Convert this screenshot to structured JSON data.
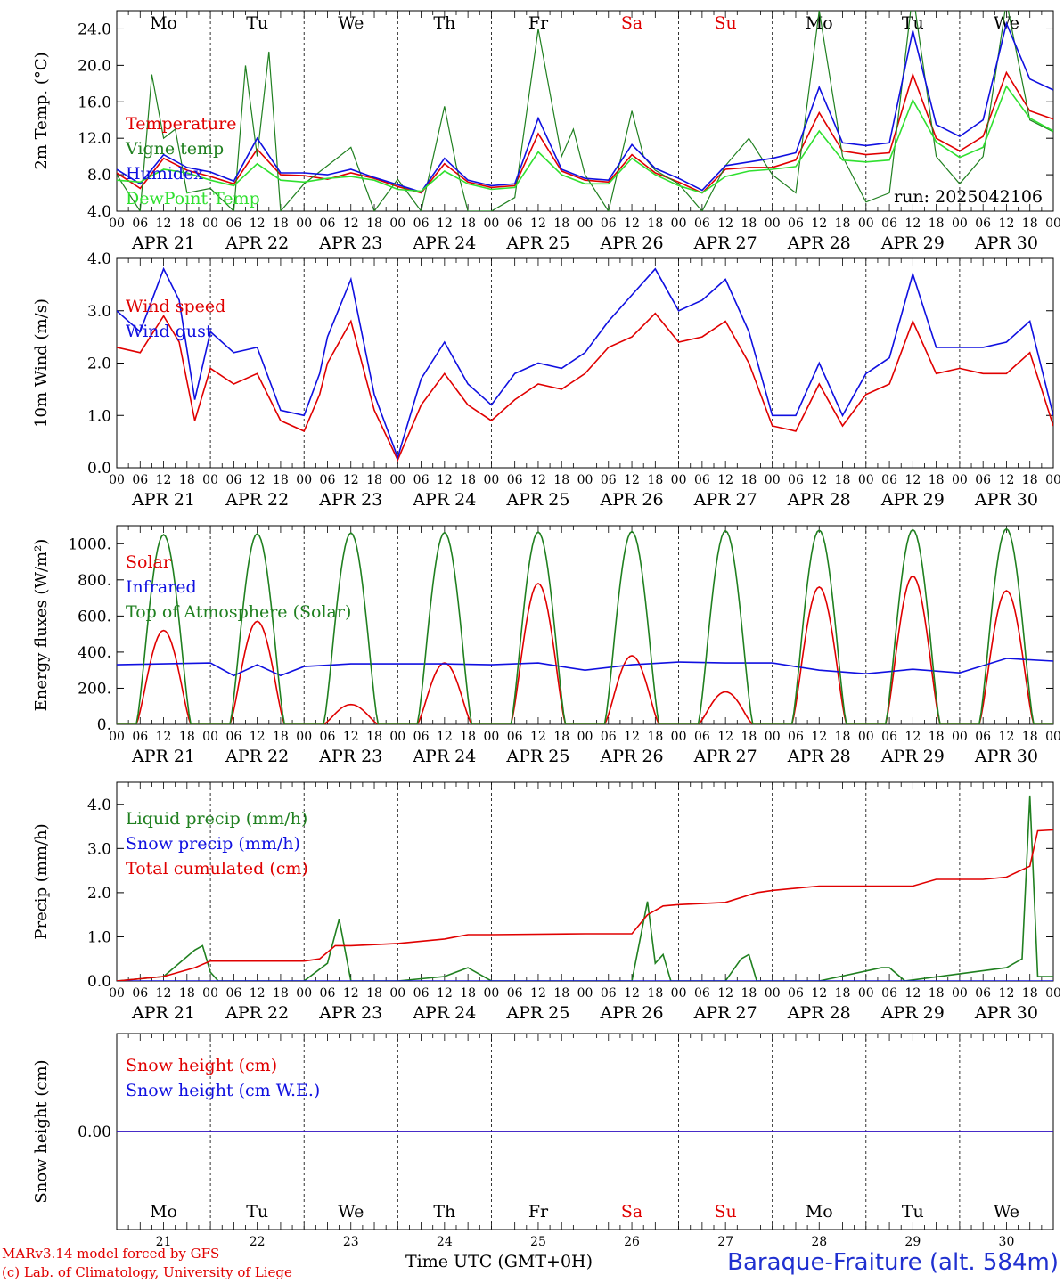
{
  "run_label": "run: 2025042106",
  "footer": {
    "model": "MARv3.14 model forced by GFS",
    "credit": "(c) Lab. of Climatology, University of Liege",
    "xlabel": "Time UTC (GMT+0H)",
    "station": "Baraque-Fraiture (alt. 584m)"
  },
  "colors": {
    "red": "#e00000",
    "green": "#208020",
    "blue": "#1010e0",
    "lightgreen": "#30e030"
  },
  "weekdays": [
    "Mo",
    "Tu",
    "We",
    "Th",
    "Fr",
    "Sa",
    "Su",
    "Mo",
    "Tu",
    "We"
  ],
  "weekday_colors": [
    "black",
    "black",
    "black",
    "black",
    "black",
    "red",
    "red",
    "black",
    "black",
    "black"
  ],
  "date_labels": [
    "APR 21",
    "APR 22",
    "APR 23",
    "APR 24",
    "APR 25",
    "APR 26",
    "APR 27",
    "APR 28",
    "APR 29",
    "APR 30"
  ],
  "day_numbers": [
    "21",
    "22",
    "23",
    "24",
    "25",
    "26",
    "27",
    "28",
    "29",
    "30"
  ],
  "hour_ticks": [
    "00",
    "06",
    "12",
    "18"
  ],
  "chart_data": [
    {
      "type": "line",
      "ylabel": "2m Temp. (°C)",
      "ylim": [
        4,
        26
      ],
      "yticks": [
        "4.0",
        "8.0",
        "12.0",
        "16.0",
        "20.0",
        "24.0"
      ],
      "ytick_values": [
        4,
        8,
        12,
        16,
        20,
        24
      ],
      "x_unit": "hours since APR 21 00 UTC",
      "series": [
        {
          "name": "Temperature",
          "color": "red",
          "x": [
            0,
            6,
            12,
            18,
            24,
            30,
            36,
            42,
            48,
            54,
            60,
            66,
            72,
            78,
            84,
            90,
            96,
            102,
            108,
            114,
            120,
            126,
            132,
            138,
            144,
            150,
            156,
            162,
            168,
            174,
            180,
            186,
            192,
            198,
            204,
            210,
            216,
            222,
            228,
            234,
            240
          ],
          "y": [
            8.2,
            6.5,
            9.8,
            8.5,
            7.8,
            7.0,
            10.8,
            8.0,
            7.9,
            7.5,
            8.2,
            7.6,
            6.7,
            6.0,
            9.2,
            7.2,
            6.6,
            6.8,
            12.5,
            8.4,
            7.4,
            7.2,
            10.2,
            8.2,
            7.2,
            6.0,
            8.6,
            8.8,
            8.8,
            9.6,
            14.8,
            10.6,
            10.2,
            10.4,
            19.0,
            12.0,
            10.6,
            12.2,
            19.2,
            15.0,
            14.1
          ]
        },
        {
          "name": "Vigne temp",
          "color": "green",
          "x": [
            0,
            6,
            9,
            12,
            15,
            18,
            24,
            30,
            33,
            36,
            39,
            42,
            48,
            54,
            60,
            66,
            72,
            78,
            84,
            87,
            90,
            96,
            102,
            108,
            114,
            117,
            120,
            126,
            132,
            135,
            138,
            144,
            150,
            156,
            162,
            168,
            174,
            180,
            186,
            192,
            198,
            204,
            210,
            216,
            222,
            228,
            234,
            240
          ],
          "y": [
            8.0,
            4.0,
            19.0,
            12.0,
            13.0,
            6.0,
            6.5,
            4.0,
            20.0,
            10.0,
            21.5,
            4.0,
            7.0,
            9.0,
            11.0,
            4.0,
            7.5,
            4.0,
            15.5,
            9.0,
            4.0,
            4.0,
            5.5,
            24.0,
            10.0,
            13.0,
            8.0,
            4.0,
            15.0,
            10.0,
            8.5,
            7.0,
            4.0,
            9.0,
            12.0,
            8.0,
            6.0,
            26.0,
            10.0,
            5.0,
            6.0,
            28.0,
            10.0,
            7.0,
            10.0,
            27.0,
            14.0,
            12.7
          ]
        },
        {
          "name": "Humidex",
          "color": "blue",
          "x": [
            0,
            6,
            12,
            18,
            24,
            30,
            36,
            42,
            48,
            54,
            60,
            66,
            72,
            78,
            84,
            90,
            96,
            102,
            108,
            114,
            120,
            126,
            132,
            138,
            144,
            150,
            156,
            162,
            168,
            174,
            180,
            186,
            192,
            198,
            204,
            210,
            216,
            222,
            228,
            234,
            240
          ],
          "y": [
            8.6,
            7.0,
            10.2,
            8.8,
            8.3,
            7.3,
            12.0,
            8.2,
            8.2,
            8.0,
            8.6,
            7.7,
            6.9,
            6.1,
            9.8,
            7.4,
            6.8,
            7.0,
            14.2,
            8.6,
            7.6,
            7.4,
            11.3,
            8.7,
            7.6,
            6.3,
            9.0,
            9.4,
            9.8,
            10.4,
            17.6,
            11.5,
            11.2,
            11.5,
            23.8,
            13.5,
            12.2,
            14.0,
            24.6,
            18.5,
            17.3
          ]
        },
        {
          "name": "DewPoint Temp",
          "color": "lightgreen",
          "x": [
            0,
            6,
            12,
            18,
            24,
            30,
            36,
            42,
            48,
            54,
            60,
            66,
            72,
            78,
            84,
            90,
            96,
            102,
            108,
            114,
            120,
            126,
            132,
            138,
            144,
            150,
            156,
            162,
            168,
            174,
            180,
            186,
            192,
            198,
            204,
            210,
            216,
            222,
            228,
            234,
            240
          ],
          "y": [
            7.4,
            7.2,
            8.6,
            8.2,
            7.4,
            6.8,
            9.2,
            7.4,
            7.2,
            7.6,
            7.8,
            7.4,
            6.4,
            6.2,
            8.4,
            7.0,
            6.4,
            6.6,
            10.5,
            8.0,
            7.0,
            7.0,
            9.8,
            8.0,
            6.8,
            6.0,
            7.8,
            8.4,
            8.6,
            8.9,
            12.8,
            9.6,
            9.4,
            9.6,
            16.2,
            11.6,
            9.9,
            11.0,
            17.7,
            14.2,
            12.8
          ]
        }
      ]
    },
    {
      "type": "line",
      "ylabel": "10m Wind (m/s)",
      "ylim": [
        0,
        4
      ],
      "yticks": [
        "0.0",
        "1.0",
        "2.0",
        "3.0",
        "4.0"
      ],
      "ytick_values": [
        0,
        1,
        2,
        3,
        4
      ],
      "x_unit": "hours since APR 21 00 UTC",
      "series": [
        {
          "name": "Wind speed",
          "color": "red",
          "x": [
            0,
            6,
            12,
            16,
            20,
            24,
            30,
            36,
            42,
            48,
            52,
            54,
            60,
            66,
            72,
            78,
            84,
            90,
            96,
            102,
            108,
            114,
            120,
            126,
            132,
            138,
            144,
            150,
            156,
            162,
            168,
            174,
            180,
            186,
            192,
            198,
            204,
            210,
            216,
            222,
            228,
            234,
            240
          ],
          "y": [
            2.3,
            2.2,
            2.9,
            2.4,
            0.9,
            1.9,
            1.6,
            1.8,
            0.9,
            0.7,
            1.4,
            2.0,
            2.8,
            1.1,
            0.15,
            1.2,
            1.8,
            1.2,
            0.9,
            1.3,
            1.6,
            1.5,
            1.8,
            2.3,
            2.5,
            2.95,
            2.4,
            2.5,
            2.8,
            2.0,
            0.8,
            0.7,
            1.6,
            0.8,
            1.4,
            1.6,
            2.8,
            1.8,
            1.9,
            1.8,
            1.8,
            2.2,
            0.8
          ]
        },
        {
          "name": "Wind gust",
          "color": "blue",
          "x": [
            0,
            6,
            12,
            16,
            20,
            24,
            30,
            36,
            42,
            48,
            52,
            54,
            60,
            66,
            72,
            78,
            84,
            90,
            96,
            102,
            108,
            114,
            120,
            126,
            132,
            138,
            144,
            150,
            156,
            162,
            168,
            174,
            180,
            186,
            192,
            198,
            204,
            210,
            216,
            222,
            228,
            234,
            240
          ],
          "y": [
            3.0,
            2.6,
            3.8,
            3.2,
            1.3,
            2.6,
            2.2,
            2.3,
            1.1,
            1.0,
            1.8,
            2.5,
            3.6,
            1.4,
            0.2,
            1.7,
            2.4,
            1.6,
            1.2,
            1.8,
            2.0,
            1.9,
            2.2,
            2.8,
            3.3,
            3.8,
            3.0,
            3.2,
            3.6,
            2.6,
            1.0,
            1.0,
            2.0,
            1.0,
            1.8,
            2.1,
            3.7,
            2.3,
            2.3,
            2.3,
            2.4,
            2.8,
            1.0
          ]
        }
      ]
    },
    {
      "type": "line",
      "ylabel": "Energy fluxes (W/m²)",
      "ylim": [
        0,
        1100
      ],
      "yticks": [
        "0.",
        "200.",
        "400.",
        "600.",
        "800.",
        "1000."
      ],
      "ytick_values": [
        0,
        200,
        400,
        600,
        800,
        1000
      ],
      "x_unit": "hours since APR 21 00 UTC",
      "series": [
        {
          "name": "Solar",
          "color": "red",
          "daily_peak": [
            520,
            570,
            110,
            340,
            780,
            380,
            180,
            760,
            820,
            740
          ]
        },
        {
          "name": "Infrared",
          "color": "blue",
          "x": [
            0,
            12,
            24,
            30,
            36,
            42,
            48,
            60,
            72,
            84,
            96,
            108,
            120,
            132,
            144,
            156,
            168,
            180,
            192,
            204,
            216,
            228,
            240
          ],
          "y": [
            330,
            335,
            340,
            270,
            330,
            270,
            320,
            335,
            335,
            335,
            330,
            340,
            300,
            330,
            345,
            340,
            340,
            300,
            280,
            305,
            285,
            365,
            350
          ]
        },
        {
          "name": "Top of Atmosphere (Solar)",
          "color": "green",
          "daily_peak": [
            1050,
            1055,
            1060,
            1062,
            1065,
            1068,
            1072,
            1075,
            1078,
            1082
          ]
        }
      ]
    },
    {
      "type": "line",
      "ylabel": "Precip (mm/h)",
      "ylim": [
        0,
        4.5
      ],
      "yticks": [
        "0.0",
        "1.0",
        "2.0",
        "3.0",
        "4.0"
      ],
      "ytick_values": [
        0,
        1,
        2,
        3,
        4
      ],
      "x_unit": "hours since APR 21 00 UTC",
      "series": [
        {
          "name": "Liquid precip (mm/h)",
          "color": "green",
          "x": [
            0,
            12,
            20,
            22,
            24,
            26,
            48,
            54,
            57,
            60,
            72,
            84,
            90,
            96,
            120,
            132,
            136,
            138,
            140,
            142,
            144,
            156,
            160,
            162,
            164,
            168,
            180,
            196,
            198,
            202,
            228,
            232,
            234,
            236,
            238,
            240
          ],
          "y": [
            0,
            0.1,
            0.7,
            0.8,
            0.2,
            0,
            0,
            0.4,
            1.4,
            0,
            0,
            0.1,
            0.3,
            0,
            0,
            0,
            1.8,
            0.4,
            0.6,
            0,
            0,
            0,
            0.5,
            0.6,
            0,
            0,
            0,
            0.3,
            0.3,
            0,
            0.3,
            0.5,
            4.2,
            0.1,
            0.1,
            0.1
          ]
        },
        {
          "name": "Snow precip (mm/h)",
          "color": "blue",
          "x": [
            0,
            240
          ],
          "y": [
            0,
            0
          ]
        },
        {
          "name": "Total cumulated (cm)",
          "color": "red",
          "x": [
            0,
            12,
            20,
            24,
            48,
            52,
            56,
            60,
            72,
            84,
            90,
            96,
            120,
            132,
            136,
            140,
            144,
            156,
            164,
            168,
            180,
            192,
            204,
            210,
            216,
            222,
            228,
            234,
            236,
            240
          ],
          "y": [
            0,
            0.1,
            0.3,
            0.45,
            0.45,
            0.5,
            0.8,
            0.8,
            0.85,
            0.95,
            1.05,
            1.05,
            1.07,
            1.07,
            1.5,
            1.7,
            1.73,
            1.78,
            2.0,
            2.05,
            2.15,
            2.15,
            2.15,
            2.3,
            2.3,
            2.3,
            2.35,
            2.6,
            3.4,
            3.42
          ]
        }
      ]
    },
    {
      "type": "line",
      "ylabel": "Snow height (cm)",
      "ylim": [
        -1,
        1
      ],
      "yticks": [
        "0.00"
      ],
      "ytick_values": [
        0
      ],
      "x_unit": "hours since APR 21 00 UTC",
      "series": [
        {
          "name": "Snow height (cm)",
          "color": "red",
          "x": [
            0,
            240
          ],
          "y": [
            0,
            0
          ]
        },
        {
          "name": "Snow height (cm W.E.)",
          "color": "blue",
          "x": [
            0,
            240
          ],
          "y": [
            0,
            0
          ]
        }
      ]
    }
  ]
}
